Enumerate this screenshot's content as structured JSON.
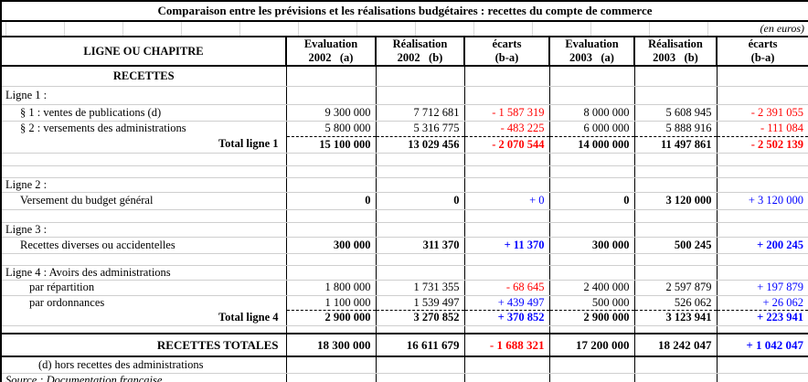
{
  "title": "Comparaison entre les prévisions et les réalisations budgétaires : recettes du compte de commerce",
  "unit_note": "(en euros)",
  "colors": {
    "negative": "#ff0000",
    "positive": "#0000ff",
    "grid_line": "#cfcfcf",
    "border": "#000000"
  },
  "header": {
    "row_label": "LIGNE OU CHAPITRE",
    "cols": [
      "Evaluation\n2002   (a)",
      "Réalisation\n2002   (b)",
      "écarts\n(b-a)",
      "Evaluation\n2003   (a)",
      "Réalisation\n2003   (b)",
      "écarts\n(b-a)"
    ]
  },
  "table": {
    "rows": [
      {
        "type": "center-bold",
        "label": "RECETTES",
        "cells": [
          {
            "v": ""
          },
          {
            "v": ""
          },
          {
            "v": ""
          },
          {
            "v": ""
          },
          {
            "v": ""
          },
          {
            "v": ""
          }
        ]
      },
      {
        "type": "section",
        "label": "Ligne 1 :",
        "cells": [
          {
            "v": ""
          },
          {
            "v": ""
          },
          {
            "v": ""
          },
          {
            "v": ""
          },
          {
            "v": ""
          },
          {
            "v": ""
          }
        ]
      },
      {
        "type": "item",
        "indent": 1,
        "label": "§ 1 : ventes de publications (d)",
        "cells": [
          {
            "v": "9 300 000"
          },
          {
            "v": "7 712 681"
          },
          {
            "v": "- 1 587 319",
            "c": "red"
          },
          {
            "v": "8 000 000"
          },
          {
            "v": "5 608 945"
          },
          {
            "v": "- 2 391 055",
            "c": "red"
          }
        ]
      },
      {
        "type": "item",
        "indent": 1,
        "label": "§ 2 : versements des administrations",
        "cells": [
          {
            "v": "5 800 000"
          },
          {
            "v": "5 316 775"
          },
          {
            "v": "- 483 225",
            "c": "red"
          },
          {
            "v": "6 000 000"
          },
          {
            "v": "5 888 916"
          },
          {
            "v": "- 111 084",
            "c": "red"
          }
        ]
      },
      {
        "type": "total",
        "label": "Total ligne 1",
        "cells": [
          {
            "v": "15 100 000",
            "b": true
          },
          {
            "v": "13 029 456",
            "b": true
          },
          {
            "v": "- 2 070 544",
            "c": "red",
            "b": true
          },
          {
            "v": "14 000 000",
            "b": true
          },
          {
            "v": "11 497 861",
            "b": true
          },
          {
            "v": "- 2 502 139",
            "c": "red",
            "b": true
          }
        ]
      },
      {
        "type": "blank",
        "label": "",
        "cells": [
          {
            "v": ""
          },
          {
            "v": ""
          },
          {
            "v": ""
          },
          {
            "v": ""
          },
          {
            "v": ""
          },
          {
            "v": ""
          }
        ]
      },
      {
        "type": "blank",
        "label": "",
        "cells": [
          {
            "v": ""
          },
          {
            "v": ""
          },
          {
            "v": ""
          },
          {
            "v": ""
          },
          {
            "v": ""
          },
          {
            "v": ""
          }
        ]
      },
      {
        "type": "section",
        "label": "Ligne 2 :",
        "cells": [
          {
            "v": ""
          },
          {
            "v": ""
          },
          {
            "v": ""
          },
          {
            "v": ""
          },
          {
            "v": ""
          },
          {
            "v": ""
          }
        ]
      },
      {
        "type": "item",
        "indent": 1,
        "label": "Versement du budget général",
        "cells": [
          {
            "v": "0",
            "b": true
          },
          {
            "v": "0",
            "b": true
          },
          {
            "v": "+ 0",
            "c": "blue"
          },
          {
            "v": "0",
            "b": true
          },
          {
            "v": "3 120 000",
            "b": true
          },
          {
            "v": "+ 3 120 000",
            "c": "blue"
          }
        ]
      },
      {
        "type": "blank",
        "label": "",
        "cells": [
          {
            "v": ""
          },
          {
            "v": ""
          },
          {
            "v": ""
          },
          {
            "v": ""
          },
          {
            "v": ""
          },
          {
            "v": ""
          }
        ]
      },
      {
        "type": "section",
        "label": "Ligne 3 :",
        "cells": [
          {
            "v": ""
          },
          {
            "v": ""
          },
          {
            "v": ""
          },
          {
            "v": ""
          },
          {
            "v": ""
          },
          {
            "v": ""
          }
        ]
      },
      {
        "type": "item",
        "indent": 1,
        "label": "Recettes diverses ou accidentelles",
        "cells": [
          {
            "v": "300 000",
            "b": true
          },
          {
            "v": "311 370",
            "b": true
          },
          {
            "v": "+ 11 370",
            "c": "blue",
            "b": true
          },
          {
            "v": "300 000",
            "b": true
          },
          {
            "v": "500 245",
            "b": true
          },
          {
            "v": "+ 200 245",
            "c": "blue",
            "b": true
          }
        ]
      },
      {
        "type": "blank",
        "label": "",
        "cells": [
          {
            "v": ""
          },
          {
            "v": ""
          },
          {
            "v": ""
          },
          {
            "v": ""
          },
          {
            "v": ""
          },
          {
            "v": ""
          }
        ]
      },
      {
        "type": "section",
        "label": "Ligne 4 :  Avoirs des administrations",
        "cells": [
          {
            "v": ""
          },
          {
            "v": ""
          },
          {
            "v": ""
          },
          {
            "v": ""
          },
          {
            "v": ""
          },
          {
            "v": ""
          }
        ]
      },
      {
        "type": "item",
        "indent": 2,
        "label": "par répartition",
        "cells": [
          {
            "v": "1 800 000"
          },
          {
            "v": "1 731 355"
          },
          {
            "v": "- 68 645",
            "c": "red"
          },
          {
            "v": "2 400 000"
          },
          {
            "v": "2 597 879"
          },
          {
            "v": "+ 197 879",
            "c": "blue"
          }
        ]
      },
      {
        "type": "item",
        "indent": 2,
        "label": "par ordonnances",
        "cells": [
          {
            "v": "1 100 000"
          },
          {
            "v": "1 539 497"
          },
          {
            "v": "+ 439 497",
            "c": "blue"
          },
          {
            "v": "500 000"
          },
          {
            "v": "526 062"
          },
          {
            "v": "+ 26 062",
            "c": "blue"
          }
        ]
      },
      {
        "type": "total",
        "label": "Total ligne 4",
        "cells": [
          {
            "v": "2 900 000",
            "b": true
          },
          {
            "v": "3 270 852",
            "b": true
          },
          {
            "v": "+ 370 852",
            "c": "blue",
            "b": true
          },
          {
            "v": "2 900 000",
            "b": true
          },
          {
            "v": "3 123 941",
            "b": true
          },
          {
            "v": "+ 223 941",
            "c": "blue",
            "b": true
          }
        ]
      },
      {
        "type": "blank",
        "label": "",
        "cells": [
          {
            "v": ""
          },
          {
            "v": ""
          },
          {
            "v": ""
          },
          {
            "v": ""
          },
          {
            "v": ""
          },
          {
            "v": ""
          }
        ]
      },
      {
        "type": "grand",
        "label": "RECETTES TOTALES",
        "cells": [
          {
            "v": "18 300 000",
            "b": true
          },
          {
            "v": "16 611 679",
            "b": true
          },
          {
            "v": "- 1 688 321",
            "c": "red",
            "b": true
          },
          {
            "v": "17 200 000",
            "b": true
          },
          {
            "v": "18 242 047",
            "b": true
          },
          {
            "v": "+ 1 042 047",
            "c": "blue",
            "b": true
          }
        ]
      },
      {
        "type": "note",
        "label": "(d) hors recettes des administrations",
        "cells": [
          {
            "v": ""
          },
          {
            "v": ""
          },
          {
            "v": ""
          },
          {
            "v": ""
          },
          {
            "v": ""
          },
          {
            "v": ""
          }
        ]
      },
      {
        "type": "source",
        "label": "Source : Documentation française",
        "cells": [
          {
            "v": ""
          },
          {
            "v": ""
          },
          {
            "v": ""
          },
          {
            "v": ""
          },
          {
            "v": ""
          },
          {
            "v": ""
          }
        ]
      }
    ]
  }
}
